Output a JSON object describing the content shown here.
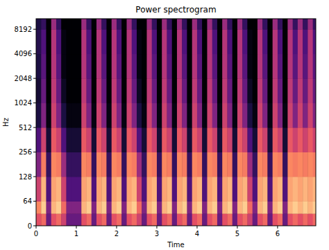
{
  "chart_data": {
    "type": "heatmap",
    "title": "Power spectrogram",
    "x_label": "Time",
    "y_label": "Hz",
    "log": "y",
    "xlim": [
      0,
      6.95
    ],
    "ylim": [
      0,
      11025
    ],
    "xticks": [
      0,
      1,
      2,
      3,
      4,
      5,
      6
    ],
    "yticks": [
      0,
      64,
      128,
      256,
      512,
      1024,
      2048,
      4096,
      8192
    ],
    "zlim": [
      -80,
      0
    ],
    "x_edges": [
      0,
      0.125,
      0.25,
      0.375,
      0.5,
      0.625,
      0.75,
      0.875,
      1,
      1.125,
      1.25,
      1.375,
      1.5,
      1.625,
      1.75,
      1.875,
      2,
      2.125,
      2.25,
      2.375,
      2.5,
      2.625,
      2.75,
      2.875,
      3,
      3.125,
      3.25,
      3.375,
      3.5,
      3.625,
      3.75,
      3.875,
      4,
      4.125,
      4.25,
      4.375,
      4.5,
      4.625,
      4.75,
      4.875,
      5,
      5.125,
      5.25,
      5.375,
      5.5,
      5.625,
      5.75,
      5.875,
      6,
      6.125,
      6.25,
      6.375,
      6.5,
      6.625,
      6.75,
      6.875,
      7
    ],
    "y_edges": [
      0,
      32,
      64,
      128,
      256,
      512,
      1024,
      2048,
      4096,
      8192,
      11025
    ],
    "z": [
      [
        -30,
        -25,
        -55,
        -30,
        -25,
        -35,
        -55,
        -55,
        -55,
        -30,
        -25,
        -55,
        -30,
        -25,
        -55,
        -30,
        -25,
        -55,
        -30,
        -25,
        -35,
        -55,
        -30,
        -25,
        -55,
        -30,
        -25,
        -55,
        -30,
        -25,
        -55,
        -30,
        -25,
        -55,
        -30,
        -25,
        -55,
        -30,
        -25,
        -55,
        -30,
        -25,
        -35,
        -55,
        -30,
        -25,
        -55,
        -30,
        -25,
        -55,
        -30,
        -25,
        -30,
        -25,
        -30,
        -25
      ],
      [
        -20,
        -8,
        -50,
        -12,
        -8,
        -25,
        -50,
        -50,
        -50,
        -12,
        -8,
        -50,
        -12,
        -8,
        -50,
        -12,
        -8,
        -50,
        -12,
        -8,
        -25,
        -50,
        -12,
        -8,
        -50,
        -12,
        -8,
        -50,
        -12,
        -8,
        -50,
        -12,
        -8,
        -50,
        -12,
        -8,
        -50,
        -12,
        -8,
        -50,
        -12,
        -8,
        -25,
        -50,
        -12,
        -8,
        -50,
        -12,
        -8,
        -50,
        -12,
        -8,
        -12,
        -8,
        -12,
        -8
      ],
      [
        -35,
        -12,
        -60,
        -15,
        -12,
        -35,
        -60,
        -60,
        -60,
        -15,
        -12,
        -60,
        -15,
        -12,
        -60,
        -15,
        -12,
        -60,
        -15,
        -12,
        -35,
        -60,
        -15,
        -12,
        -60,
        -15,
        -12,
        -60,
        -15,
        -12,
        -60,
        -15,
        -12,
        -60,
        -15,
        -12,
        -60,
        -15,
        -12,
        -60,
        -15,
        -12,
        -35,
        -60,
        -15,
        -12,
        -60,
        -15,
        -12,
        -60,
        -15,
        -12,
        -15,
        -12,
        -15,
        -12
      ],
      [
        -50,
        -22,
        -65,
        -20,
        -22,
        -45,
        -65,
        -65,
        -65,
        -20,
        -22,
        -65,
        -20,
        -22,
        -65,
        -20,
        -22,
        -65,
        -20,
        -22,
        -45,
        -65,
        -20,
        -22,
        -65,
        -20,
        -22,
        -65,
        -20,
        -22,
        -65,
        -20,
        -22,
        -65,
        -20,
        -22,
        -65,
        -20,
        -22,
        -65,
        -20,
        -22,
        -45,
        -65,
        -20,
        -22,
        -65,
        -20,
        -22,
        -65,
        -20,
        -22,
        -20,
        -22,
        -20,
        -22
      ],
      [
        -60,
        -35,
        -72,
        -28,
        -35,
        -60,
        -72,
        -72,
        -72,
        -28,
        -35,
        -72,
        -28,
        -35,
        -72,
        -28,
        -35,
        -72,
        -28,
        -35,
        -60,
        -72,
        -28,
        -35,
        -72,
        -28,
        -35,
        -72,
        -28,
        -35,
        -72,
        -28,
        -35,
        -72,
        -28,
        -35,
        -72,
        -28,
        -35,
        -72,
        -28,
        -35,
        -60,
        -72,
        -28,
        -35,
        -72,
        -28,
        -35,
        -72,
        -28,
        -35,
        -28,
        -35,
        -28,
        -35
      ],
      [
        -70,
        -50,
        -78,
        -35,
        -50,
        -70,
        -78,
        -78,
        -78,
        -35,
        -50,
        -78,
        -35,
        -50,
        -78,
        -35,
        -50,
        -78,
        -35,
        -50,
        -70,
        -78,
        -35,
        -50,
        -78,
        -35,
        -50,
        -78,
        -35,
        -50,
        -78,
        -35,
        -50,
        -78,
        -35,
        -50,
        -78,
        -35,
        -50,
        -78,
        -35,
        -50,
        -70,
        -78,
        -35,
        -50,
        -78,
        -35,
        -50,
        -78,
        -35,
        -50,
        -35,
        -50,
        -35,
        -50
      ],
      [
        -72,
        -55,
        -80,
        -38,
        -55,
        -75,
        -80,
        -80,
        -80,
        -38,
        -55,
        -80,
        -38,
        -55,
        -80,
        -38,
        -55,
        -80,
        -38,
        -55,
        -75,
        -80,
        -38,
        -55,
        -80,
        -38,
        -55,
        -80,
        -38,
        -55,
        -80,
        -38,
        -55,
        -80,
        -38,
        -55,
        -80,
        -38,
        -55,
        -80,
        -38,
        -55,
        -75,
        -80,
        -38,
        -55,
        -80,
        -38,
        -55,
        -80,
        -38,
        -55,
        -38,
        -55,
        -38,
        -55
      ],
      [
        -70,
        -58,
        -80,
        -40,
        -58,
        -78,
        -80,
        -80,
        -80,
        -40,
        -58,
        -80,
        -40,
        -58,
        -80,
        -40,
        -58,
        -80,
        -40,
        -58,
        -78,
        -80,
        -40,
        -58,
        -80,
        -40,
        -58,
        -80,
        -40,
        -58,
        -80,
        -40,
        -58,
        -80,
        -40,
        -58,
        -80,
        -40,
        -58,
        -80,
        -40,
        -58,
        -78,
        -80,
        -40,
        -58,
        -80,
        -40,
        -58,
        -80,
        -40,
        -58,
        -40,
        -58,
        -40,
        -58
      ],
      [
        -68,
        -60,
        -80,
        -40,
        -60,
        -78,
        -80,
        -80,
        -80,
        -40,
        -60,
        -80,
        -40,
        -60,
        -80,
        -40,
        -60,
        -80,
        -40,
        -60,
        -78,
        -80,
        -40,
        -60,
        -80,
        -40,
        -60,
        -80,
        -40,
        -60,
        -80,
        -40,
        -60,
        -80,
        -40,
        -60,
        -80,
        -40,
        -60,
        -80,
        -40,
        -60,
        -78,
        -80,
        -40,
        -60,
        -80,
        -40,
        -60,
        -80,
        -40,
        -60,
        -40,
        -60,
        -40,
        -60
      ],
      [
        -70,
        -65,
        -80,
        -45,
        -65,
        -80,
        -80,
        -80,
        -80,
        -45,
        -65,
        -80,
        -45,
        -65,
        -80,
        -45,
        -65,
        -80,
        -45,
        -65,
        -80,
        -80,
        -45,
        -65,
        -80,
        -45,
        -65,
        -80,
        -45,
        -65,
        -80,
        -45,
        -65,
        -80,
        -45,
        -65,
        -80,
        -45,
        -65,
        -80,
        -45,
        -65,
        -80,
        -80,
        -45,
        -65,
        -80,
        -45,
        -65,
        -80,
        -45,
        -65,
        -45,
        -65,
        -45,
        -65
      ]
    ]
  }
}
